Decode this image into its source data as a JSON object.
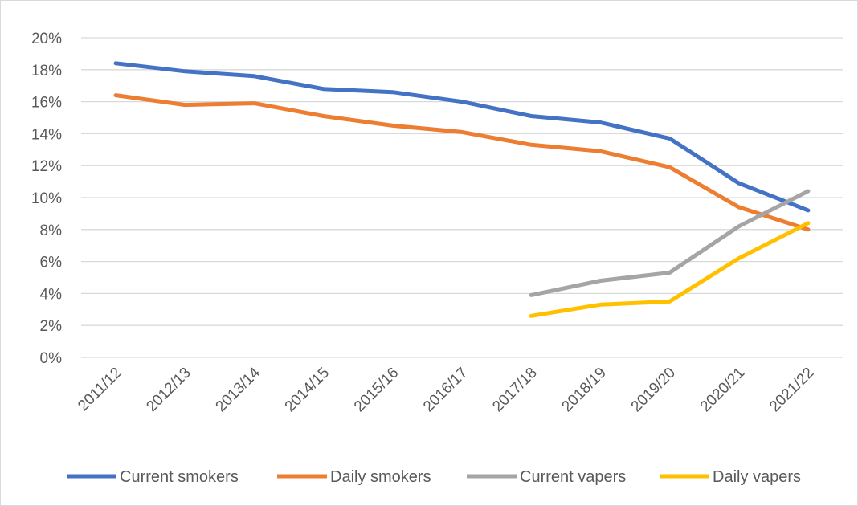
{
  "chart_data": {
    "type": "line",
    "title": "",
    "xlabel": "",
    "ylabel": "",
    "categories": [
      "2011/12",
      "2012/13",
      "2013/14",
      "2014/15",
      "2015/16",
      "2016/17",
      "2017/18",
      "2018/19",
      "2019/20",
      "2020/21",
      "2021/22"
    ],
    "y_ticks": [
      "0%",
      "2%",
      "4%",
      "6%",
      "8%",
      "10%",
      "12%",
      "14%",
      "16%",
      "18%",
      "20%"
    ],
    "ylim": [
      0,
      20
    ],
    "grid": true,
    "legend_position": "bottom",
    "series": [
      {
        "name": "Current smokers",
        "color": "#4472c4",
        "values": [
          18.4,
          17.9,
          17.6,
          16.8,
          16.6,
          16.0,
          15.1,
          14.7,
          13.7,
          10.9,
          9.2
        ]
      },
      {
        "name": "Daily smokers",
        "color": "#ed7d31",
        "values": [
          16.4,
          15.8,
          15.9,
          15.1,
          14.5,
          14.1,
          13.3,
          12.9,
          11.9,
          9.4,
          8.0
        ]
      },
      {
        "name": "Current vapers",
        "color": "#a5a5a5",
        "values": [
          null,
          null,
          null,
          null,
          null,
          null,
          3.9,
          4.8,
          5.3,
          8.2,
          10.4
        ]
      },
      {
        "name": "Daily vapers",
        "color": "#ffc000",
        "values": [
          null,
          null,
          null,
          null,
          null,
          null,
          2.6,
          3.3,
          3.5,
          6.2,
          8.4
        ]
      }
    ]
  }
}
